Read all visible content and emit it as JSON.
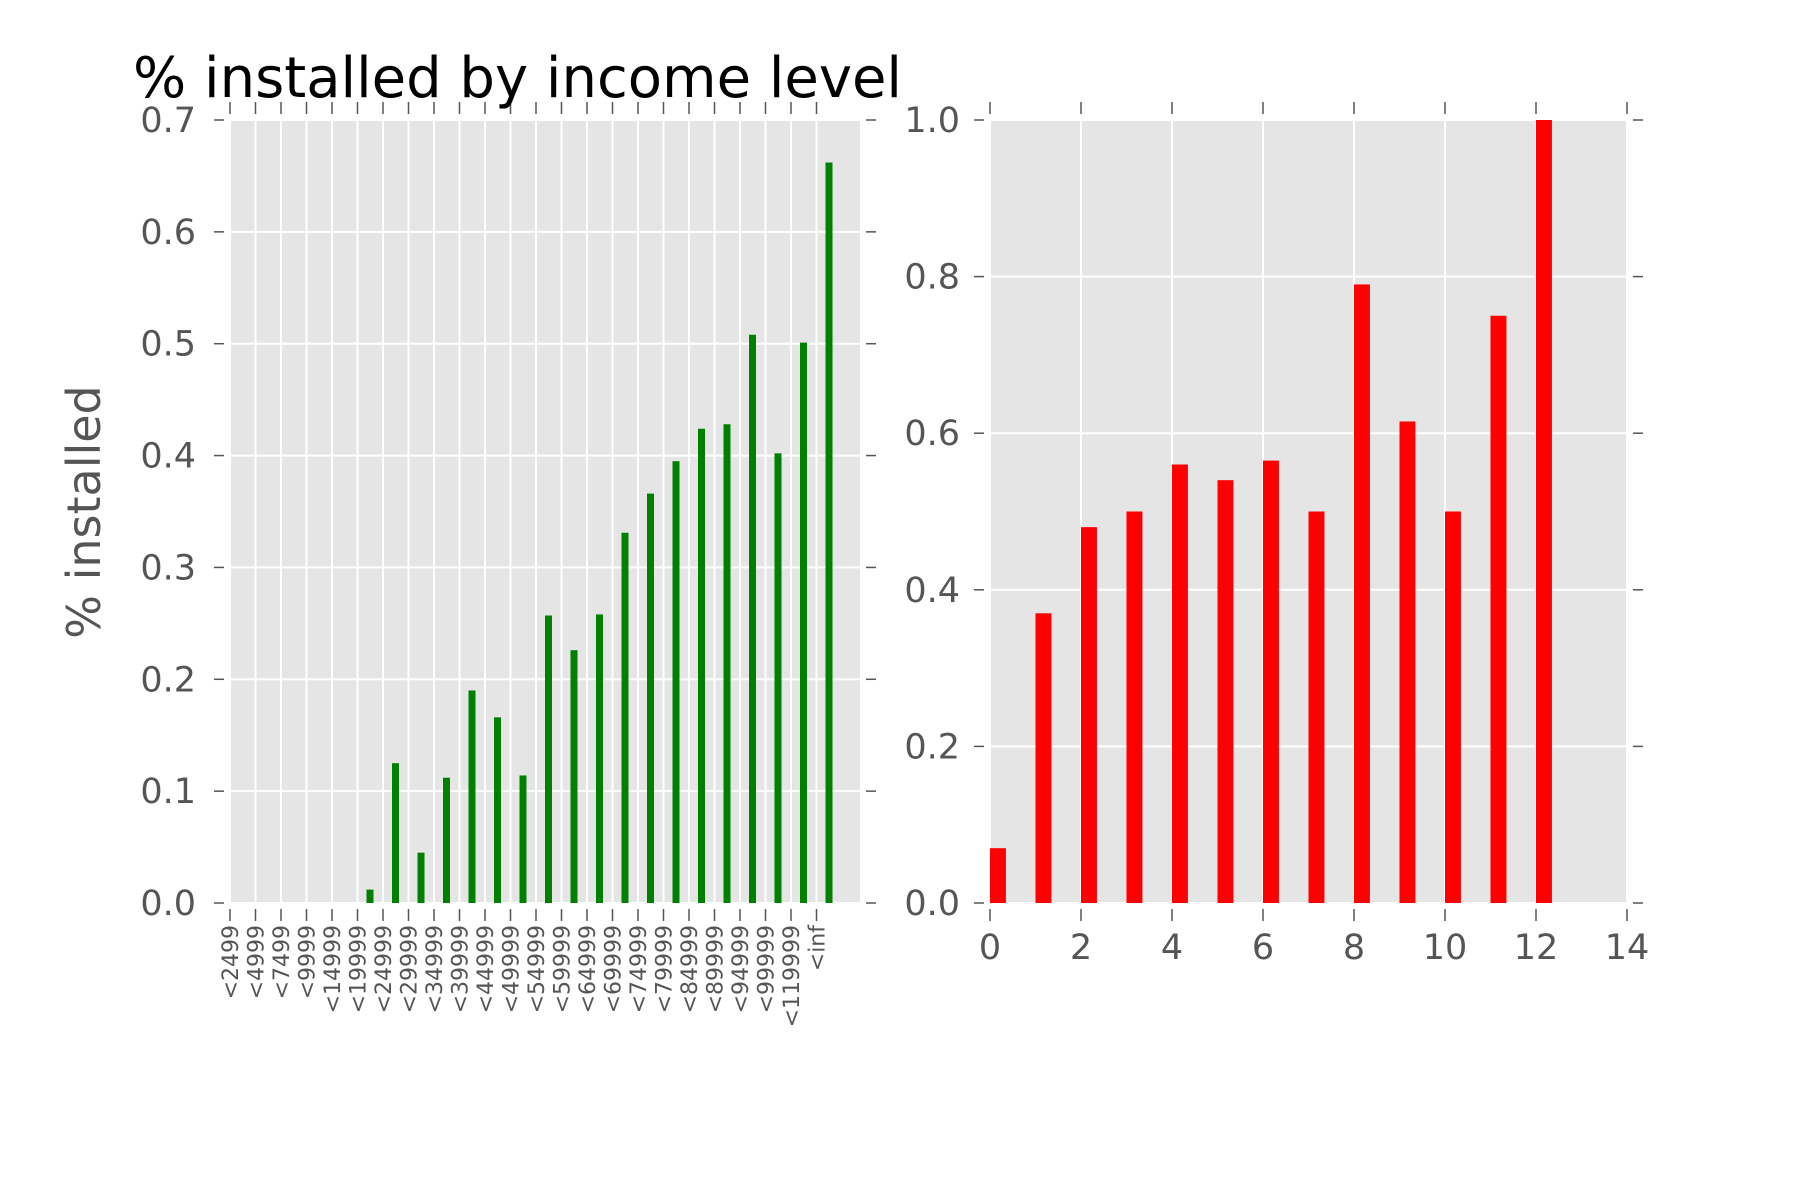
{
  "chart_data": [
    {
      "type": "bar",
      "title": "% installed by income level",
      "ylabel": "% installed",
      "xlabel": "",
      "ylim": [
        0,
        0.7
      ],
      "yticks": [
        "0.0",
        "0.1",
        "0.2",
        "0.3",
        "0.4",
        "0.5",
        "0.6",
        "0.7"
      ],
      "grid": true,
      "bar_color": "#008000",
      "background": "#e5e5e5",
      "categories": [
        "<2499",
        "<4999",
        "<7499",
        "<9999",
        "<14999",
        "<19999",
        "<24999",
        "<29999",
        "<34999",
        "<39999",
        "<44999",
        "<49999",
        "<54999",
        "<59999",
        "<64999",
        "<69999",
        "<74999",
        "<79999",
        "<84999",
        "<89999",
        "<94999",
        "<99999",
        "<119999",
        "<inf"
      ],
      "values": [
        0,
        0,
        0,
        0,
        0,
        0.012,
        0.125,
        0.045,
        0.112,
        0.19,
        0.166,
        0.114,
        0.257,
        0.226,
        0.258,
        0.331,
        0.366,
        0.395,
        0.424,
        0.428,
        0.508,
        0.402,
        0.501,
        0.662
      ]
    },
    {
      "type": "bar",
      "title": "",
      "ylabel": "",
      "xlabel": "",
      "ylim": [
        0,
        1.0
      ],
      "xlim": [
        0,
        14
      ],
      "yticks": [
        "0.0",
        "0.2",
        "0.4",
        "0.6",
        "0.8",
        "1.0"
      ],
      "xticks": [
        "0",
        "2",
        "4",
        "6",
        "8",
        "10",
        "12",
        "14"
      ],
      "grid": true,
      "bar_color": "#ff0000",
      "background": "#e5e5e5",
      "x": [
        0,
        1,
        2,
        3,
        4,
        5,
        6,
        7,
        8,
        9,
        10,
        11,
        12
      ],
      "values": [
        0.07,
        0.37,
        0.48,
        0.5,
        0.56,
        0.54,
        0.565,
        0.5,
        0.79,
        0.615,
        0.5,
        0.75,
        1.0
      ]
    }
  ]
}
